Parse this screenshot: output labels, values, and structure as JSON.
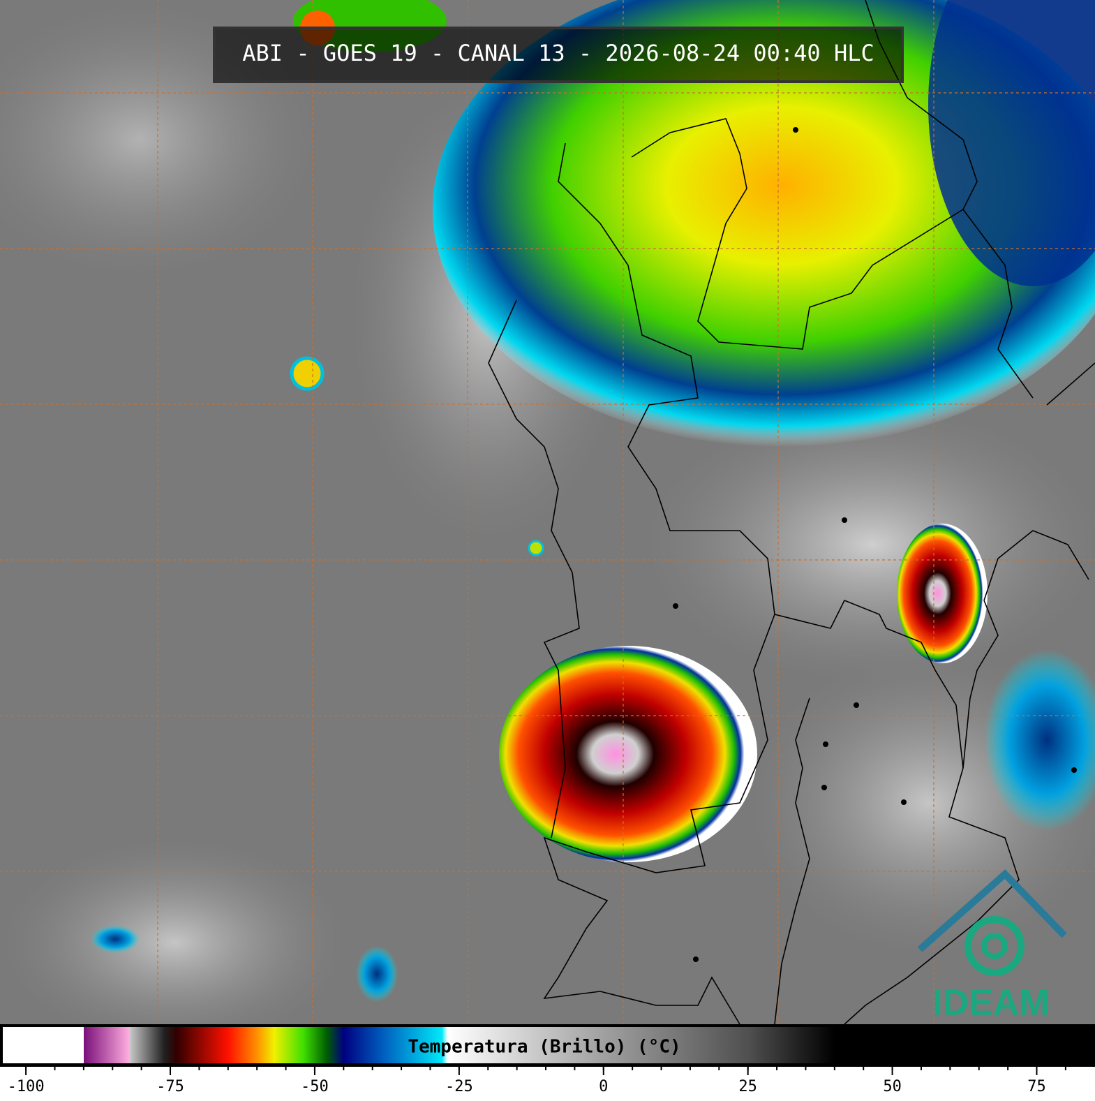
{
  "header": {
    "title": "ABI - GOES 19 - CANAL 13 - 2026-08-24 00:40 HLC"
  },
  "logo": {
    "text": "IDEAM"
  },
  "colorbar": {
    "label": "Temperatura (Brillo) (°C)",
    "lim": [
      -104,
      84
    ],
    "ticks": [
      -100,
      -75,
      -50,
      -25,
      0,
      25,
      50,
      75
    ],
    "minor_step": 5,
    "stops": [
      {
        "value": -104,
        "color": "#ffffff"
      },
      {
        "value": -90,
        "color": "#ffffff"
      },
      {
        "value": -90,
        "color": "#7a0f7a"
      },
      {
        "value": -82,
        "color": "#ffb0e0"
      },
      {
        "value": -82,
        "color": "#c8c8c8"
      },
      {
        "value": -76,
        "color": "#202020"
      },
      {
        "value": -74,
        "color": "#300000"
      },
      {
        "value": -65,
        "color": "#ff1000"
      },
      {
        "value": -60,
        "color": "#ff9000"
      },
      {
        "value": -57,
        "color": "#f0f000"
      },
      {
        "value": -52,
        "color": "#40e000"
      },
      {
        "value": -48,
        "color": "#006000"
      },
      {
        "value": -45,
        "color": "#000080"
      },
      {
        "value": -38,
        "color": "#0060c0"
      },
      {
        "value": -28,
        "color": "#00e8f8"
      },
      {
        "value": -27,
        "color": "#ffffff"
      },
      {
        "value": 0,
        "color": "#a0a0a0"
      },
      {
        "value": 25,
        "color": "#505050"
      },
      {
        "value": 40,
        "color": "#000000"
      },
      {
        "value": 84,
        "color": "#000000"
      }
    ]
  }
}
